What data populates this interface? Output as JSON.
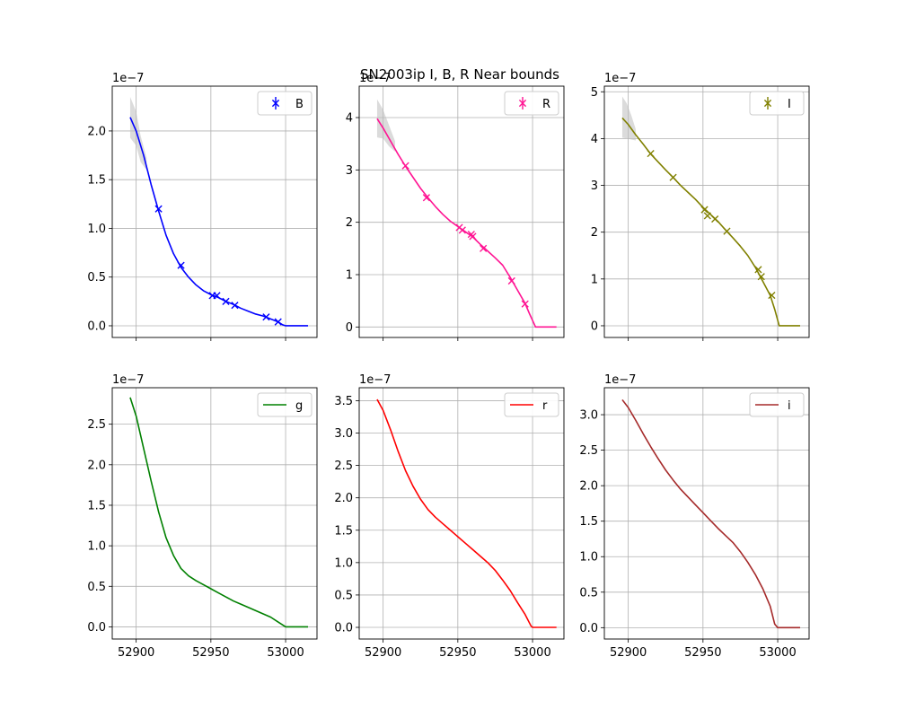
{
  "title": "SN2003ip  I, B, R Near bounds",
  "chart_data": [
    {
      "type": "line",
      "legend": "B",
      "color": "#0000ff",
      "has_markers": true,
      "offset_text": "1e−7",
      "xlim": [
        52884,
        53021
      ],
      "ylim": [
        -0.12,
        2.46
      ],
      "x_ticks": [
        52900,
        52950,
        53000
      ],
      "x_tick_labels": [
        "",
        "",
        ""
      ],
      "y_ticks": [
        0.0,
        0.5,
        1.0,
        1.5,
        2.0
      ],
      "y_tick_labels": [
        "0.0",
        "0.5",
        "1.0",
        "1.5",
        "2.0"
      ],
      "curve": [
        [
          52896,
          2.14
        ],
        [
          52900,
          2.0
        ],
        [
          52905,
          1.75
        ],
        [
          52910,
          1.45
        ],
        [
          52915,
          1.18
        ],
        [
          52920,
          0.93
        ],
        [
          52925,
          0.74
        ],
        [
          52930,
          0.6
        ],
        [
          52935,
          0.5
        ],
        [
          52940,
          0.42
        ],
        [
          52945,
          0.36
        ],
        [
          52950,
          0.32
        ],
        [
          52955,
          0.29
        ],
        [
          52960,
          0.25
        ],
        [
          52965,
          0.22
        ],
        [
          52970,
          0.18
        ],
        [
          52975,
          0.15
        ],
        [
          52980,
          0.12
        ],
        [
          52985,
          0.1
        ],
        [
          52990,
          0.07
        ],
        [
          52995,
          0.04
        ],
        [
          52998,
          0.01
        ],
        [
          53000,
          0.0
        ],
        [
          53015,
          0.0
        ]
      ],
      "band": {
        "x": [
          52896,
          52900,
          52903,
          52907
        ],
        "upper": [
          2.35,
          2.2,
          1.95,
          1.72
        ],
        "lower": [
          1.93,
          1.85,
          1.68,
          1.6
        ]
      },
      "points": [
        {
          "x": 52915,
          "y": 1.2
        },
        {
          "x": 52930,
          "y": 0.62
        },
        {
          "x": 52951,
          "y": 0.31
        },
        {
          "x": 52954,
          "y": 0.31
        },
        {
          "x": 52960,
          "y": 0.25
        },
        {
          "x": 52966,
          "y": 0.21
        },
        {
          "x": 52987,
          "y": 0.09
        },
        {
          "x": 52995,
          "y": 0.04
        }
      ]
    },
    {
      "type": "line",
      "legend": "R",
      "color": "#ff1493",
      "has_markers": true,
      "offset_text": "1e−7",
      "xlim": [
        52884,
        53021
      ],
      "ylim": [
        -0.2,
        4.6
      ],
      "x_ticks": [
        52900,
        52950,
        53000
      ],
      "x_tick_labels": [
        "",
        "",
        ""
      ],
      "y_ticks": [
        0,
        1,
        2,
        3,
        4
      ],
      "y_tick_labels": [
        "0",
        "1",
        "2",
        "3",
        "4"
      ],
      "curve": [
        [
          52896,
          3.98
        ],
        [
          52900,
          3.8
        ],
        [
          52905,
          3.55
        ],
        [
          52910,
          3.3
        ],
        [
          52915,
          3.07
        ],
        [
          52920,
          2.86
        ],
        [
          52925,
          2.65
        ],
        [
          52930,
          2.47
        ],
        [
          52935,
          2.3
        ],
        [
          52940,
          2.15
        ],
        [
          52945,
          2.02
        ],
        [
          52950,
          1.92
        ],
        [
          52955,
          1.82
        ],
        [
          52960,
          1.72
        ],
        [
          52965,
          1.58
        ],
        [
          52970,
          1.45
        ],
        [
          52975,
          1.32
        ],
        [
          52980,
          1.18
        ],
        [
          52985,
          0.95
        ],
        [
          52990,
          0.7
        ],
        [
          52995,
          0.45
        ],
        [
          52998,
          0.25
        ],
        [
          53002,
          0.0
        ],
        [
          53016,
          0.0
        ]
      ],
      "band": {
        "x": [
          52896,
          52900,
          52904,
          52908
        ],
        "upper": [
          4.35,
          4.15,
          3.85,
          3.55
        ],
        "lower": [
          3.62,
          3.6,
          3.45,
          3.35
        ]
      },
      "points": [
        {
          "x": 52915,
          "y": 3.08
        },
        {
          "x": 52929,
          "y": 2.47
        },
        {
          "x": 52951,
          "y": 1.9
        },
        {
          "x": 52953,
          "y": 1.85
        },
        {
          "x": 52959,
          "y": 1.77
        },
        {
          "x": 52960,
          "y": 1.73
        },
        {
          "x": 52967,
          "y": 1.5
        },
        {
          "x": 52986,
          "y": 0.88
        },
        {
          "x": 52995,
          "y": 0.44
        }
      ]
    },
    {
      "type": "line",
      "legend": "I",
      "color": "#808000",
      "has_markers": true,
      "offset_text": "1e−7",
      "xlim": [
        52884,
        53021
      ],
      "ylim": [
        -0.25,
        5.12
      ],
      "x_ticks": [
        52900,
        52950,
        53000
      ],
      "x_tick_labels": [
        "",
        "",
        ""
      ],
      "y_ticks": [
        0,
        1,
        2,
        3,
        4,
        5
      ],
      "y_tick_labels": [
        "0",
        "1",
        "2",
        "3",
        "4",
        "5"
      ],
      "curve": [
        [
          52896,
          4.44
        ],
        [
          52900,
          4.3
        ],
        [
          52905,
          4.08
        ],
        [
          52910,
          3.88
        ],
        [
          52915,
          3.67
        ],
        [
          52920,
          3.5
        ],
        [
          52925,
          3.33
        ],
        [
          52930,
          3.17
        ],
        [
          52935,
          3.0
        ],
        [
          52940,
          2.85
        ],
        [
          52945,
          2.7
        ],
        [
          52950,
          2.53
        ],
        [
          52955,
          2.38
        ],
        [
          52960,
          2.23
        ],
        [
          52965,
          2.05
        ],
        [
          52970,
          1.88
        ],
        [
          52975,
          1.7
        ],
        [
          52980,
          1.5
        ],
        [
          52985,
          1.25
        ],
        [
          52990,
          0.95
        ],
        [
          52995,
          0.65
        ],
        [
          52998,
          0.35
        ],
        [
          53001,
          0.0
        ],
        [
          53015,
          0.0
        ]
      ],
      "band": {
        "x": [
          52896,
          52899,
          52902,
          52905
        ],
        "upper": [
          4.9,
          4.75,
          4.5,
          4.2
        ],
        "lower": [
          4.02,
          4.0,
          3.98,
          3.96
        ]
      },
      "points": [
        {
          "x": 52915,
          "y": 3.68
        },
        {
          "x": 52930,
          "y": 3.17
        },
        {
          "x": 52951,
          "y": 2.48
        },
        {
          "x": 52953,
          "y": 2.35
        },
        {
          "x": 52958,
          "y": 2.28
        },
        {
          "x": 52966,
          "y": 2.02
        },
        {
          "x": 52987,
          "y": 1.2
        },
        {
          "x": 52989,
          "y": 1.05
        },
        {
          "x": 52996,
          "y": 0.65
        }
      ]
    },
    {
      "type": "line",
      "legend": "g",
      "color": "#008000",
      "has_markers": false,
      "offset_text": "1e−7",
      "xlim": [
        52884,
        53021
      ],
      "ylim": [
        -0.15,
        2.95
      ],
      "x_ticks": [
        52900,
        52950,
        53000
      ],
      "x_tick_labels": [
        "52900",
        "52950",
        "53000"
      ],
      "y_ticks": [
        0.0,
        0.5,
        1.0,
        1.5,
        2.0,
        2.5
      ],
      "y_tick_labels": [
        "0.0",
        "0.5",
        "1.0",
        "1.5",
        "2.0",
        "2.5"
      ],
      "curve": [
        [
          52896,
          2.83
        ],
        [
          52900,
          2.6
        ],
        [
          52905,
          2.2
        ],
        [
          52910,
          1.8
        ],
        [
          52915,
          1.42
        ],
        [
          52920,
          1.1
        ],
        [
          52925,
          0.88
        ],
        [
          52930,
          0.72
        ],
        [
          52935,
          0.63
        ],
        [
          52940,
          0.57
        ],
        [
          52945,
          0.52
        ],
        [
          52950,
          0.47
        ],
        [
          52955,
          0.42
        ],
        [
          52960,
          0.37
        ],
        [
          52965,
          0.32
        ],
        [
          52970,
          0.28
        ],
        [
          52975,
          0.24
        ],
        [
          52980,
          0.2
        ],
        [
          52985,
          0.16
        ],
        [
          52990,
          0.12
        ],
        [
          52995,
          0.06
        ],
        [
          53000,
          0.0
        ],
        [
          53015,
          0.0
        ]
      ],
      "band": null,
      "points": []
    },
    {
      "type": "line",
      "legend": "r",
      "color": "#ff0000",
      "has_markers": false,
      "offset_text": "1e−7",
      "xlim": [
        52884,
        53021
      ],
      "ylim": [
        -0.18,
        3.7
      ],
      "x_ticks": [
        52900,
        52950,
        53000
      ],
      "x_tick_labels": [
        "52900",
        "52950",
        "53000"
      ],
      "y_ticks": [
        0.0,
        0.5,
        1.0,
        1.5,
        2.0,
        2.5,
        3.0,
        3.5
      ],
      "y_tick_labels": [
        "0.0",
        "0.5",
        "1.0",
        "1.5",
        "2.0",
        "2.5",
        "3.0",
        "3.5"
      ],
      "curve": [
        [
          52896,
          3.52
        ],
        [
          52900,
          3.35
        ],
        [
          52905,
          3.05
        ],
        [
          52910,
          2.72
        ],
        [
          52915,
          2.42
        ],
        [
          52920,
          2.18
        ],
        [
          52925,
          1.98
        ],
        [
          52930,
          1.82
        ],
        [
          52935,
          1.7
        ],
        [
          52940,
          1.6
        ],
        [
          52945,
          1.5
        ],
        [
          52950,
          1.4
        ],
        [
          52955,
          1.3
        ],
        [
          52960,
          1.2
        ],
        [
          52965,
          1.1
        ],
        [
          52970,
          1.0
        ],
        [
          52975,
          0.88
        ],
        [
          52980,
          0.73
        ],
        [
          52985,
          0.57
        ],
        [
          52990,
          0.38
        ],
        [
          52995,
          0.2
        ],
        [
          52999,
          0.02
        ],
        [
          53000,
          0.0
        ],
        [
          53016,
          0.0
        ]
      ],
      "band": null,
      "points": []
    },
    {
      "type": "line",
      "legend": "i",
      "color": "#a52a2a",
      "has_markers": false,
      "offset_text": "1e−7",
      "xlim": [
        52884,
        53021
      ],
      "ylim": [
        -0.16,
        3.38
      ],
      "x_ticks": [
        52900,
        52950,
        53000
      ],
      "x_tick_labels": [
        "52900",
        "52950",
        "53000"
      ],
      "y_ticks": [
        0.0,
        0.5,
        1.0,
        1.5,
        2.0,
        2.5,
        3.0
      ],
      "y_tick_labels": [
        "0.0",
        "0.5",
        "1.0",
        "1.5",
        "2.0",
        "2.5",
        "3.0"
      ],
      "curve": [
        [
          52896,
          3.21
        ],
        [
          52900,
          3.1
        ],
        [
          52905,
          2.92
        ],
        [
          52910,
          2.73
        ],
        [
          52915,
          2.55
        ],
        [
          52920,
          2.38
        ],
        [
          52925,
          2.22
        ],
        [
          52930,
          2.08
        ],
        [
          52935,
          1.95
        ],
        [
          52940,
          1.84
        ],
        [
          52945,
          1.73
        ],
        [
          52950,
          1.62
        ],
        [
          52955,
          1.51
        ],
        [
          52960,
          1.4
        ],
        [
          52965,
          1.3
        ],
        [
          52970,
          1.2
        ],
        [
          52975,
          1.07
        ],
        [
          52980,
          0.92
        ],
        [
          52985,
          0.75
        ],
        [
          52990,
          0.55
        ],
        [
          52995,
          0.3
        ],
        [
          52998,
          0.05
        ],
        [
          53000,
          0.0
        ],
        [
          53015,
          0.0
        ]
      ],
      "band": null,
      "points": []
    }
  ]
}
